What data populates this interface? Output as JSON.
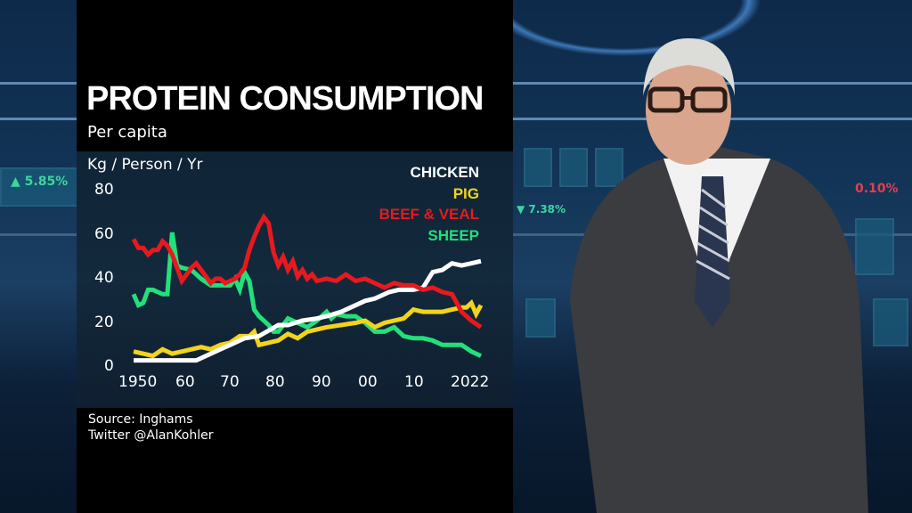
{
  "chart_data": {
    "type": "line",
    "title": "PROTEIN CONSUMPTION",
    "subtitle": "Per capita",
    "ylabel": "Kg / Person / Yr",
    "xlabel": "",
    "ylim": [
      0,
      80
    ],
    "xlim": [
      1950,
      2022
    ],
    "yticks": [
      "0",
      "20",
      "40",
      "60",
      "80"
    ],
    "xticks": [
      "1950",
      "60",
      "70",
      "80",
      "90",
      "00",
      "10",
      "2022"
    ],
    "grid": false,
    "legend_position": "top-right",
    "series": [
      {
        "name": "CHICKEN",
        "color": "#ffffff",
        "x": [
          1950,
          1955,
          1960,
          1963,
          1966,
          1970,
          1973,
          1976,
          1980,
          1982,
          1985,
          1988,
          1990,
          1993,
          1995,
          1998,
          2000,
          2003,
          2005,
          2008,
          2010,
          2012,
          2014,
          2016,
          2018,
          2020,
          2022
        ],
        "y": [
          3,
          3,
          3,
          3,
          6,
          10,
          13,
          14,
          19,
          19,
          21,
          22,
          23,
          25,
          27,
          30,
          31,
          34,
          35,
          35,
          36,
          43,
          44,
          47,
          46,
          47,
          48
        ]
      },
      {
        "name": "PIG",
        "color": "#f2d41c",
        "x": [
          1950,
          1952,
          1954,
          1956,
          1958,
          1960,
          1962,
          1964,
          1966,
          1968,
          1970,
          1972,
          1974,
          1975,
          1976,
          1978,
          1980,
          1982,
          1984,
          1986,
          1988,
          1990,
          1993,
          1996,
          1998,
          2000,
          2002,
          2004,
          2006,
          2008,
          2010,
          2012,
          2014,
          2016,
          2018,
          2019,
          2020,
          2021,
          2022
        ],
        "y": [
          7,
          6,
          5,
          8,
          6,
          7,
          8,
          9,
          8,
          10,
          11,
          14,
          14,
          16,
          10,
          11,
          12,
          15,
          13,
          16,
          17,
          18,
          19,
          20,
          21,
          18,
          20,
          21,
          22,
          26,
          25,
          25,
          25,
          26,
          27,
          27,
          29,
          24,
          28
        ]
      },
      {
        "name": "BEEF & VEAL",
        "color": "#e8191e",
        "x": [
          1950,
          1951,
          1952,
          1953,
          1954,
          1955,
          1956,
          1957,
          1958,
          1959,
          1960,
          1961,
          1962,
          1963,
          1964,
          1965,
          1966,
          1967,
          1968,
          1969,
          1970,
          1971,
          1972,
          1973,
          1974,
          1975,
          1976,
          1977,
          1978,
          1979,
          1980,
          1981,
          1982,
          1983,
          1984,
          1985,
          1986,
          1987,
          1988,
          1990,
          1992,
          1994,
          1996,
          1998,
          2000,
          2002,
          2004,
          2006,
          2008,
          2010,
          2012,
          2014,
          2016,
          2018,
          2020,
          2022
        ],
        "y": [
          58,
          54,
          54,
          51,
          53,
          53,
          57,
          55,
          51,
          45,
          39,
          42,
          45,
          47,
          44,
          41,
          38,
          40,
          40,
          38,
          39,
          40,
          42,
          45,
          53,
          59,
          64,
          68,
          65,
          52,
          46,
          50,
          44,
          48,
          41,
          44,
          40,
          42,
          39,
          40,
          39,
          42,
          39,
          40,
          38,
          36,
          38,
          37,
          37,
          35,
          36,
          34,
          33,
          25,
          21,
          18
        ]
      },
      {
        "name": "SHEEP",
        "color": "#22e07a",
        "x": [
          1950,
          1951,
          1952,
          1953,
          1954,
          1955,
          1956,
          1957,
          1958,
          1959,
          1960,
          1962,
          1964,
          1966,
          1968,
          1970,
          1971,
          1972,
          1973,
          1974,
          1975,
          1976,
          1978,
          1979,
          1980,
          1982,
          1984,
          1986,
          1988,
          1990,
          1991,
          1992,
          1994,
          1996,
          1998,
          2000,
          2002,
          2004,
          2006,
          2008,
          2010,
          2012,
          2014,
          2016,
          2018,
          2020,
          2022
        ],
        "y": [
          33,
          28,
          29,
          35,
          35,
          34,
          33,
          33,
          61,
          46,
          45,
          44,
          40,
          37,
          37,
          37,
          40,
          35,
          43,
          39,
          26,
          23,
          19,
          16,
          16,
          22,
          20,
          18,
          21,
          25,
          22,
          24,
          23,
          23,
          20,
          16,
          16,
          18,
          14,
          13,
          13,
          12,
          10,
          10,
          10,
          7,
          5
        ]
      }
    ]
  },
  "panel": {
    "title": "PROTEIN CONSUMPTION",
    "subtitle": "Per capita",
    "unit_label": "Kg / Person / Yr",
    "legend": [
      {
        "label": "CHICKEN",
        "color": "#ffffff"
      },
      {
        "label": "PIG",
        "color": "#f2d41c"
      },
      {
        "label": "BEEF & VEAL",
        "color": "#e8191e"
      },
      {
        "label": "SHEEP",
        "color": "#22e07a"
      }
    ],
    "y_ticks": [
      "80",
      "60",
      "40",
      "20",
      "0"
    ],
    "x_ticks": [
      "1950",
      "60",
      "70",
      "80",
      "90",
      "00",
      "10",
      "2022"
    ],
    "source": "Source: Inghams",
    "twitter": "Twitter @AlanKohler"
  },
  "background": {
    "tickers": [
      "▲ 5.85%",
      "▼ 7.38%",
      "0.10%"
    ]
  }
}
